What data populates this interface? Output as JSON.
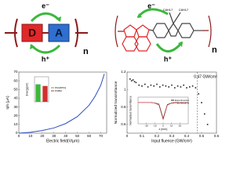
{
  "diagram": {
    "donor": "D",
    "acceptor": "A",
    "repeat": "n",
    "electron": "e⁻",
    "hole": "h⁺"
  },
  "polymer": {
    "electron": "e⁻",
    "hole": "h⁺",
    "side_chain_1": "C8H17",
    "side_chain_2": "C8H17",
    "repeat": "n"
  },
  "chart_data": [
    {
      "type": "line",
      "x_label": "Electric field(V/μm)",
      "y_label": "Iph (μA)",
      "x": [
        0,
        10,
        20,
        30,
        40,
        50,
        60,
        65,
        70,
        73
      ],
      "series": [
        {
          "color": "#2f4fbf",
          "values": [
            0,
            1,
            3,
            6,
            11,
            19,
            32,
            42,
            55,
            68
          ]
        }
      ],
      "xlim": [
        0,
        75
      ],
      "xticks": [
        0,
        10,
        20,
        30,
        40,
        50,
        60,
        70
      ],
      "ylim": [
        0,
        70
      ],
      "yticks": [
        0,
        10,
        20,
        30,
        40,
        50,
        60,
        70
      ]
    },
    {
      "type": "bar",
      "y_label": "Energy(eV)",
      "series": [
        {
          "name": "PAADPFQ",
          "color": "#3cb83c",
          "values": [
            2.1
          ]
        },
        {
          "name": "PCBM",
          "color": "#d03030",
          "values": [
            1.9
          ]
        }
      ],
      "ylim": [
        0,
        3
      ]
    },
    {
      "type": "scatter",
      "x_label": "Input fluence (GW/cm²)",
      "y_label": "Normalized transmittance",
      "x": [
        0.02,
        0.03,
        0.04,
        0.05,
        0.06,
        0.08,
        0.1,
        0.12,
        0.14,
        0.16,
        0.18,
        0.2,
        0.22,
        0.24,
        0.26,
        0.28,
        0.3,
        0.32,
        0.34,
        0.36,
        0.38,
        0.4,
        0.42,
        0.44,
        0.46,
        0.48,
        0.5,
        0.52,
        0.54
      ],
      "series": [
        {
          "color": "#222222",
          "values": [
            1.12,
            1.1,
            1.11,
            1.09,
            1.08,
            1.05,
            1.04,
            1.06,
            1.03,
            1.05,
            1.04,
            1.06,
            1.03,
            1.05,
            1.04,
            1.03,
            1.05,
            1.02,
            1.04,
            1.03,
            1.05,
            1.02,
            1.03,
            1.04,
            1.02,
            0.95,
            0.85,
            0.72,
            0.6
          ]
        }
      ],
      "annotation": {
        "text": "0.47 GW/cm²",
        "x": 0.47
      },
      "xlim": [
        0,
        0.6
      ],
      "xticks": [
        0,
        0.1,
        0.2,
        0.3,
        0.4,
        0.5,
        0.6
      ],
      "ylim": [
        0.5,
        1.2
      ],
      "yticks": [
        0.6,
        0.8,
        1,
        1.2
      ]
    },
    {
      "type": "line",
      "x_label": "z (mm)",
      "y_label": "Normalized transmittance",
      "x": [
        -30,
        -25,
        -20,
        -15,
        -10,
        -5,
        0,
        5,
        10,
        15,
        20,
        25,
        30
      ],
      "series": [
        {
          "name": "Experimental",
          "color": "#222222",
          "values": [
            1,
            1,
            1,
            1,
            0.99,
            0.97,
            0.7,
            0.96,
            0.99,
            1,
            1,
            1,
            1
          ]
        },
        {
          "name": "Theoretical fit",
          "color": "#d03030",
          "values": [
            1,
            1,
            1,
            1,
            0.99,
            0.95,
            0.68,
            0.95,
            0.99,
            1,
            1,
            1,
            1
          ]
        }
      ],
      "xlim": [
        -30,
        30
      ],
      "xticks": [
        -20,
        -10,
        0,
        10,
        20
      ],
      "ylim": [
        0.6,
        1.1
      ]
    }
  ]
}
